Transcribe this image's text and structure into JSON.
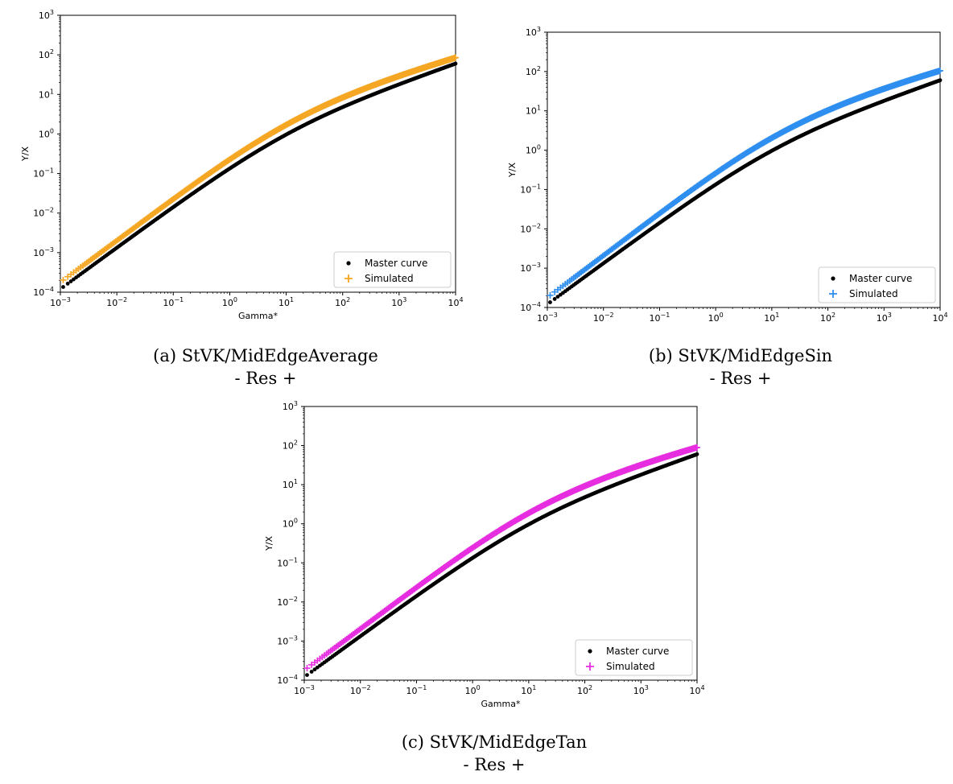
{
  "chart_data": [
    {
      "type": "scatter",
      "xlabel": "Gamma*",
      "ylabel": "Y/X",
      "xscale": "log",
      "yscale": "log",
      "xlim": [
        0.001,
        10000
      ],
      "ylim": [
        0.0001,
        1000
      ],
      "grid": false,
      "legend_position": "bottom-right",
      "caption_line1": "(a) StVK/MidEdgeAverage",
      "caption_line2": "- Res +",
      "series": [
        {
          "name": "Master curve",
          "marker": "dot",
          "color": "#000000",
          "start": 0.00012,
          "end_x": 10000,
          "end_y": 60,
          "overshoot": 0
        },
        {
          "name": "Simulated",
          "marker": "plus",
          "color": "#f5a623",
          "start": 0.00018,
          "end_x": 10000,
          "end_y": 85,
          "overshoot": 0.15
        }
      ]
    },
    {
      "type": "scatter",
      "xlabel": "",
      "ylabel": "Y/X",
      "xscale": "log",
      "yscale": "log",
      "xlim": [
        0.001,
        10000
      ],
      "ylim": [
        0.0001,
        1000
      ],
      "grid": false,
      "legend_position": "bottom-right",
      "caption_line1": "(b) StVK/MidEdgeSin",
      "caption_line2": "- Res +",
      "series": [
        {
          "name": "Master curve",
          "marker": "dot",
          "color": "#000000",
          "start": 0.00012,
          "end_x": 10000,
          "end_y": 60,
          "overshoot": 0
        },
        {
          "name": "Simulated",
          "marker": "plus",
          "color": "#2f8ff0",
          "start": 0.00018,
          "end_x": 10000,
          "end_y": 105,
          "overshoot": 0.2
        }
      ]
    },
    {
      "type": "scatter",
      "xlabel": "Gamma*",
      "ylabel": "Y/X",
      "xscale": "log",
      "yscale": "log",
      "xlim": [
        0.001,
        10000
      ],
      "ylim": [
        0.0001,
        1000
      ],
      "grid": false,
      "legend_position": "bottom-right",
      "caption_line1": "(c) StVK/MidEdgeTan",
      "caption_line2": "- Res +",
      "series": [
        {
          "name": "Master curve",
          "marker": "dot",
          "color": "#000000",
          "start": 0.00012,
          "end_x": 10000,
          "end_y": 60,
          "overshoot": 0
        },
        {
          "name": "Simulated",
          "marker": "plus",
          "color": "#e62ee0",
          "start": 0.00018,
          "end_x": 10000,
          "end_y": 90,
          "overshoot": 0.2
        }
      ]
    }
  ]
}
